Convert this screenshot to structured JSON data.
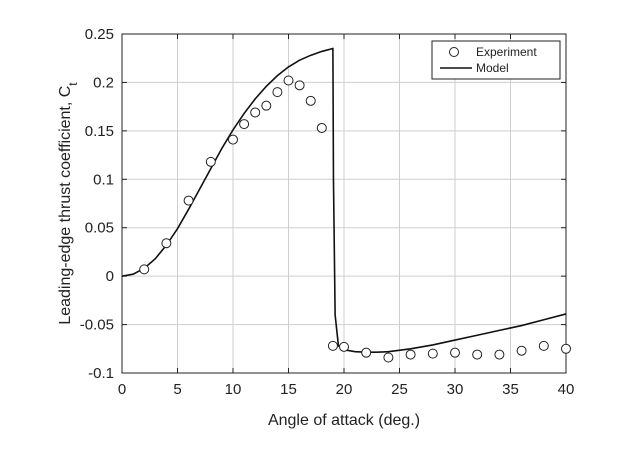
{
  "chart_data": {
    "type": "line",
    "xlabel": "Angle of attack (deg.)",
    "ylabel_main": "Leading-edge thrust coefficient, C",
    "ylabel_sub": "t",
    "xlim": [
      0,
      40
    ],
    "ylim": [
      -0.1,
      0.25
    ],
    "xticks": [
      0,
      5,
      10,
      15,
      20,
      25,
      30,
      35,
      40
    ],
    "yticks": [
      -0.1,
      -0.05,
      0,
      0.05,
      0.1,
      0.15,
      0.2,
      0.25
    ],
    "xtick_labels": [
      "0",
      "5",
      "10",
      "15",
      "20",
      "25",
      "30",
      "35",
      "40"
    ],
    "ytick_labels": [
      "-0.1",
      "-0.05",
      "0",
      "0.05",
      "0.1",
      "0.15",
      "0.2",
      "0.25"
    ],
    "grid": true,
    "legend_position": "top-right",
    "series": [
      {
        "name": "Experiment",
        "style": "markers",
        "marker": "open-circle",
        "x": [
          2,
          4,
          6,
          8,
          10,
          11,
          12,
          13,
          14,
          15,
          16,
          17,
          18,
          19,
          20,
          22,
          24,
          26,
          28,
          30,
          32,
          34,
          36,
          38,
          40
        ],
        "y": [
          0.007,
          0.034,
          0.078,
          0.118,
          0.141,
          0.157,
          0.169,
          0.176,
          0.19,
          0.202,
          0.197,
          0.181,
          0.153,
          -0.072,
          -0.073,
          -0.079,
          -0.084,
          -0.081,
          -0.08,
          -0.079,
          -0.081,
          -0.081,
          -0.077,
          -0.072,
          -0.075
        ]
      },
      {
        "name": "Model",
        "style": "line",
        "x": [
          0,
          0.5,
          1,
          2,
          3,
          4,
          5,
          6,
          7,
          8,
          9,
          10,
          11,
          12,
          13,
          14,
          15,
          16,
          17,
          18,
          19,
          19.05,
          19.2,
          19.5,
          20,
          21,
          22,
          23,
          24,
          26,
          28,
          30,
          32,
          34,
          36,
          38,
          40
        ],
        "y": [
          0.0,
          0.001,
          0.002,
          0.008,
          0.018,
          0.032,
          0.049,
          0.069,
          0.09,
          0.111,
          0.132,
          0.151,
          0.168,
          0.183,
          0.196,
          0.207,
          0.216,
          0.223,
          0.228,
          0.232,
          0.235,
          0.1,
          -0.04,
          -0.072,
          -0.076,
          -0.078,
          -0.0785,
          -0.0785,
          -0.078,
          -0.075,
          -0.071,
          -0.066,
          -0.061,
          -0.056,
          -0.051,
          -0.045,
          -0.039
        ]
      }
    ]
  }
}
